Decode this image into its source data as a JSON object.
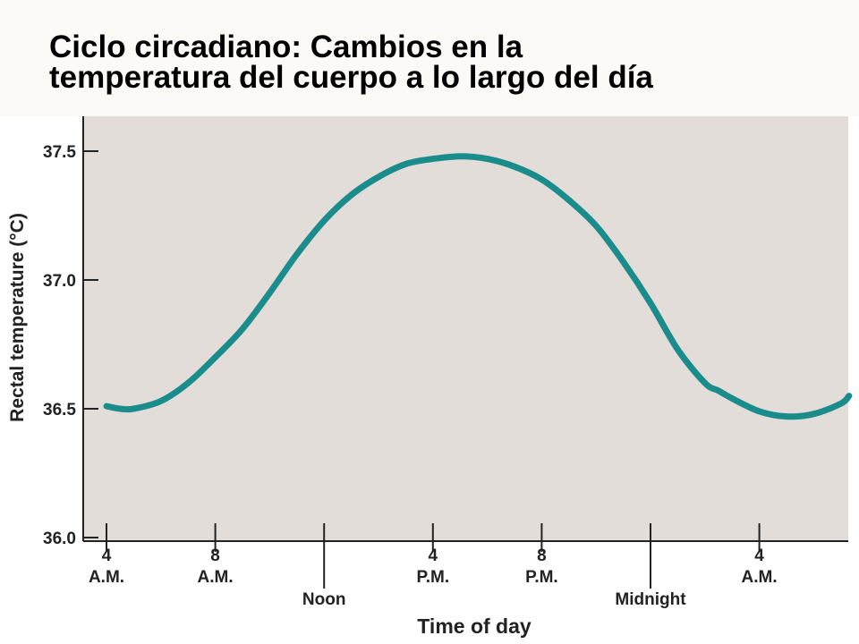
{
  "title": {
    "line1": "Ciclo circadiano: Cambios en la",
    "line2": "temperatura del cuerpo a lo largo del día"
  },
  "chart_data": {
    "type": "line",
    "title": "Ciclo circadiano: Cambios en la temperatura del cuerpo a lo largo del día",
    "xlabel": "Time of day",
    "ylabel": "Rectal temperature (°C)",
    "ylim": [
      36.0,
      37.6
    ],
    "xlim": [
      4,
      31.3
    ],
    "yticks": [
      36.0,
      36.5,
      37.0,
      37.5
    ],
    "ytick_labels": [
      "36.0",
      "36.5",
      "37.0",
      "37.5"
    ],
    "xticks": [
      {
        "x": 4,
        "line1": "4",
        "line2": "A.M.",
        "kind": "hour"
      },
      {
        "x": 8,
        "line1": "8",
        "line2": "A.M.",
        "kind": "hour"
      },
      {
        "x": 12,
        "line1": "Noon",
        "line2": "",
        "kind": "marker"
      },
      {
        "x": 16,
        "line1": "4",
        "line2": "P.M.",
        "kind": "hour"
      },
      {
        "x": 20,
        "line1": "8",
        "line2": "P.M.",
        "kind": "hour"
      },
      {
        "x": 24,
        "line1": "Midnight",
        "line2": "",
        "kind": "marker"
      },
      {
        "x": 28,
        "line1": "4",
        "line2": "A.M.",
        "kind": "hour"
      }
    ],
    "grid": false,
    "colors": {
      "line": "#1a8c8c",
      "plot_bg": "#e3ddd9",
      "axis": "#222222"
    },
    "series": [
      {
        "name": "Rectal temperature",
        "x": [
          4.0,
          4.5,
          5.0,
          6.0,
          7.0,
          8.0,
          9.0,
          10.0,
          11.0,
          12.0,
          13.0,
          14.0,
          15.0,
          16.0,
          17.0,
          18.0,
          19.0,
          20.0,
          21.0,
          22.0,
          23.0,
          24.0,
          25.0,
          26.0,
          26.5,
          27.0,
          28.0,
          29.0,
          30.0,
          31.0,
          31.3
        ],
        "values": [
          36.51,
          36.5,
          36.5,
          36.53,
          36.6,
          36.7,
          36.81,
          36.95,
          37.1,
          37.23,
          37.33,
          37.4,
          37.45,
          37.47,
          37.48,
          37.47,
          37.44,
          37.39,
          37.31,
          37.21,
          37.07,
          36.91,
          36.73,
          36.6,
          36.57,
          36.54,
          36.49,
          36.47,
          36.48,
          36.52,
          36.55
        ]
      }
    ]
  }
}
